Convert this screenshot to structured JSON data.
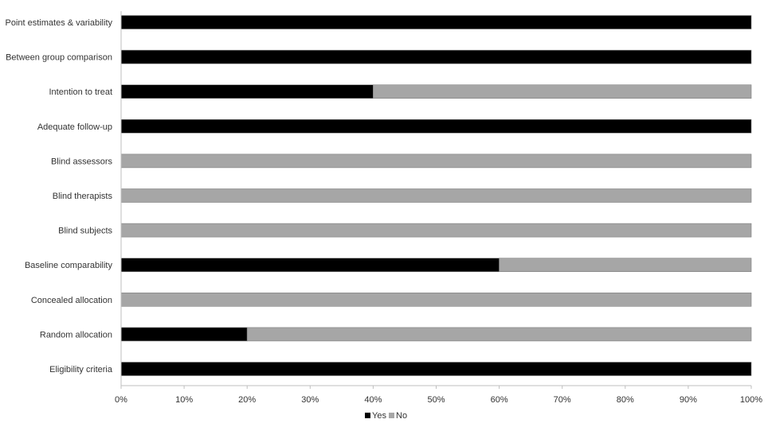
{
  "chart_data": {
    "type": "bar",
    "orientation": "horizontal",
    "stacked": true,
    "title": "",
    "xlabel": "",
    "ylabel": "",
    "categories": [
      "Point estimates & variability",
      "Between group comparison",
      "Intention to treat",
      "Adequate follow-up",
      "Blind assessors",
      "Blind therapists",
      "Blind subjects",
      "Baseline comparability",
      "Concealed allocation",
      "Random allocation",
      "Eligibility criteria"
    ],
    "series": [
      {
        "name": "Yes",
        "color": "#000000",
        "values": [
          100,
          100,
          40,
          100,
          0,
          0,
          0,
          60,
          0,
          20,
          100
        ]
      },
      {
        "name": "No",
        "color": "#a6a6a6",
        "values": [
          0,
          0,
          60,
          0,
          100,
          100,
          100,
          40,
          100,
          80,
          0
        ]
      }
    ],
    "xlim": [
      0,
      100
    ],
    "x_ticks": [
      "0%",
      "10%",
      "20%",
      "30%",
      "40%",
      "50%",
      "60%",
      "70%",
      "80%",
      "90%",
      "100%"
    ],
    "grid": false,
    "legend": {
      "position": "bottom",
      "entries": [
        "Yes",
        "No"
      ]
    }
  }
}
